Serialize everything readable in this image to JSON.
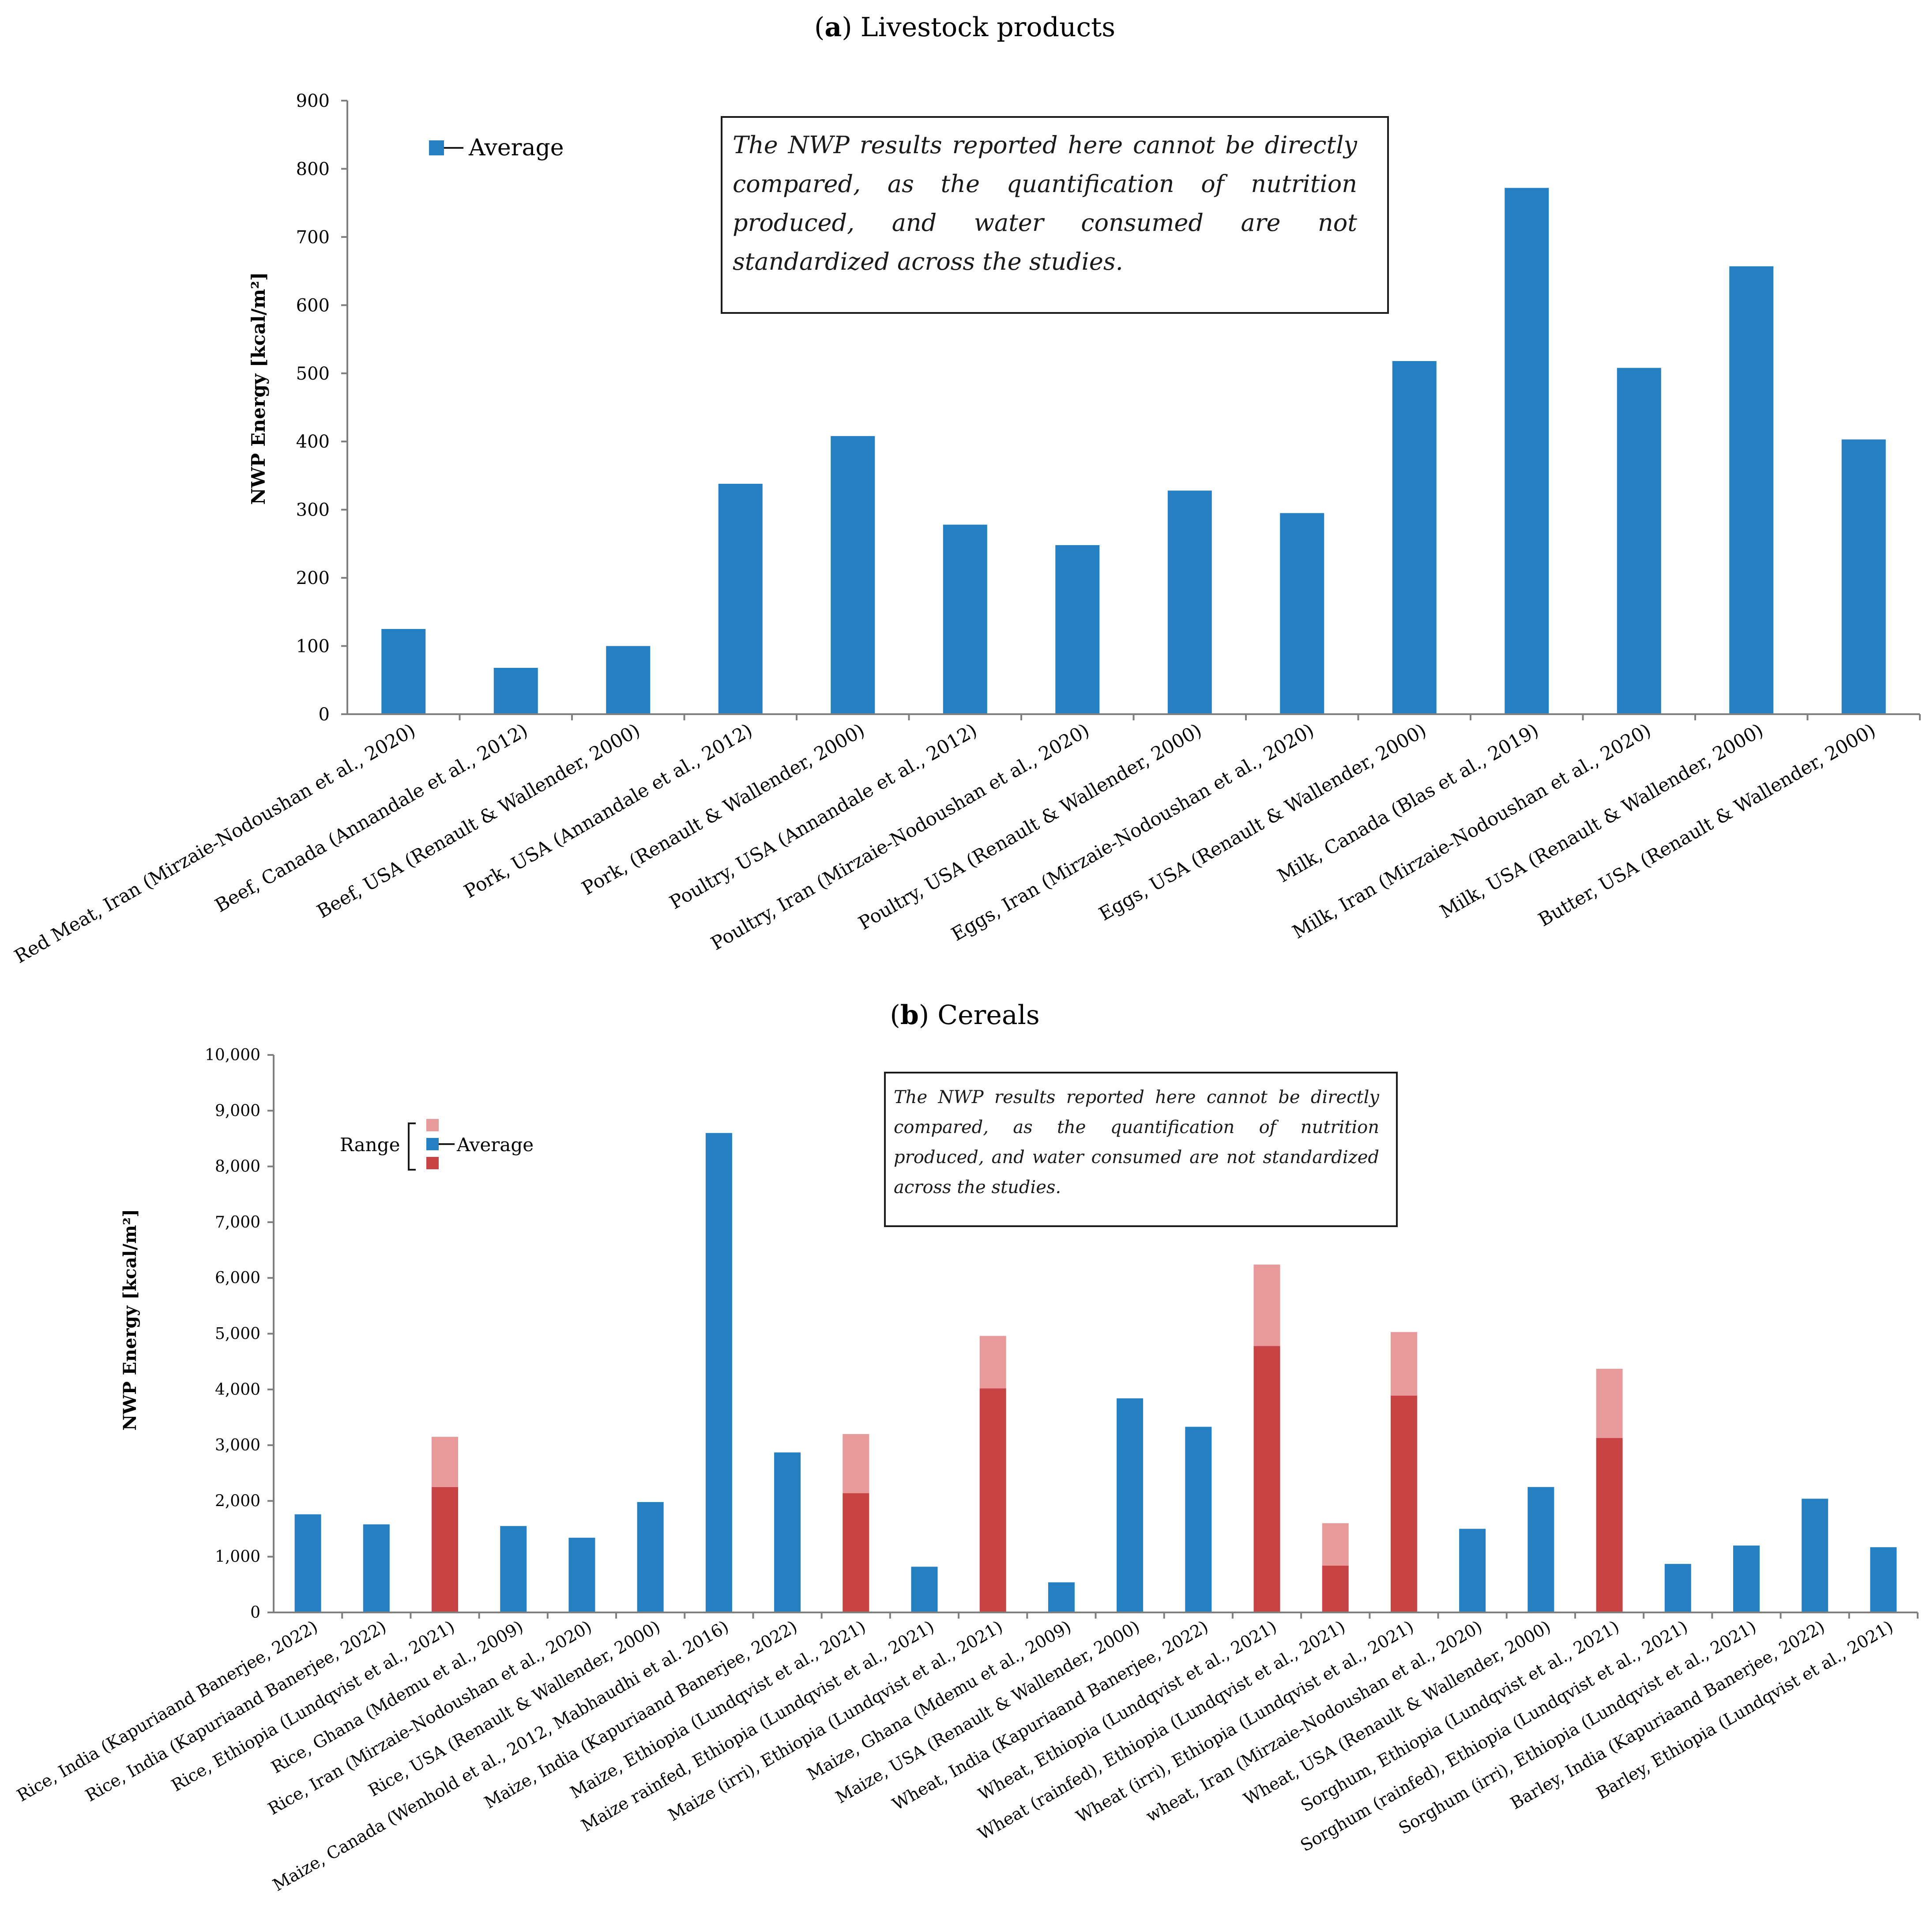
{
  "colors": {
    "average": "#2480C2",
    "range_low": "#C84444",
    "range_high": "#E89A9A",
    "axis": "#7f7f7f"
  },
  "chart_data": [
    {
      "id": "a",
      "type": "bar",
      "panel_letter": "a",
      "title": "Livestock products",
      "ylabel": "NWP Energy  [kcal/m²]",
      "ylim": [
        0,
        900
      ],
      "yticks": [
        "0",
        "100",
        "200",
        "300",
        "400",
        "500",
        "600",
        "700",
        "800",
        "900"
      ],
      "legend": {
        "average_label": "Average"
      },
      "note": "The NWP results reported here cannot be directly compared, as the quantification of nutrition produced, and water consumed are not standardized across the studies.",
      "categories": [
        "Red Meat, Iran (Mirzaie-Nodoushan et al., 2020)",
        "Beef, Canada (Annandale et al., 2012)",
        "Beef, USA (Renault & Wallender, 2000)",
        "Pork, USA (Annandale et al., 2012)",
        "Pork, (Renault & Wallender, 2000)",
        "Poultry, USA (Annandale et al., 2012)",
        "Poultry, Iran (Mirzaie-Nodoushan et al., 2020)",
        "Poultry, USA (Renault & Wallender, 2000)",
        "Eggs, Iran (Mirzaie-Nodoushan et al., 2020)",
        "Eggs, USA (Renault & Wallender, 2000)",
        "Milk, Canada (Blas et al., 2019)",
        "Milk, Iran (Mirzaie-Nodoushan et al., 2020)",
        "Milk, USA (Renault & Wallender, 2000)",
        "Butter, USA (Renault & Wallender, 2000)"
      ],
      "series": [
        {
          "name": "Average",
          "values": [
            125,
            68,
            100,
            338,
            408,
            278,
            248,
            328,
            295,
            518,
            772,
            508,
            657,
            403
          ]
        }
      ]
    },
    {
      "id": "b",
      "type": "bar",
      "panel_letter": "b",
      "title": "Cereals",
      "ylabel": "NWP Energy [kcal/m²]",
      "ylim": [
        0,
        10000
      ],
      "yticks": [
        "0",
        "1,000",
        "2,000",
        "3,000",
        "4,000",
        "5,000",
        "6,000",
        "7,000",
        "8,000",
        "9,000",
        "10,000"
      ],
      "legend": {
        "range_label": "Range",
        "average_label": "Average"
      },
      "note": "The NWP results reported here cannot be directly compared, as the quantification of nutrition produced, and water consumed are not standardized across the studies.",
      "categories": [
        "Rice, India (Kapuriaand Banerjee, 2022)",
        "Rice, India (Kapuriaand Banerjee, 2022)",
        "Rice, Ethiopia (Lundqvist et al., 2021)",
        "Rice, Ghana (Mdemu et al., 2009)",
        "Rice, Iran (Mirzaie-Nodoushan et al., 2020)",
        "Rice, USA (Renault & Wallender, 2000)",
        "Maize, Canada (Wenhold et al., 2012, Mabhaudhi et al. 2016)",
        "Maize, India (Kapuriaand Banerjee, 2022)",
        "Maize, Ethiopia (Lundqvist et al., 2021)",
        "Maize rainfed, Ethiopia (Lundqvist et al., 2021)",
        "Maize  (irri), Ethiopia (Lundqvist et al., 2021)",
        "Maize, Ghana (Mdemu et al., 2009)",
        "Maize, USA (Renault & Wallender, 2000)",
        "Wheat, India (Kapuriaand Banerjee, 2022)",
        "Wheat, Ethiopia (Lundqvist et al., 2021)",
        "Wheat  (rainfed), Ethiopia (Lundqvist et al., 2021)",
        "Wheat   (irri), Ethiopia (Lundqvist et al., 2021)",
        "wheat, Iran (Mirzaie-Nodoushan et al., 2020)",
        "Wheat, USA (Renault & Wallender, 2000)",
        "Sorghum, Ethiopia (Lundqvist et al., 2021)",
        "Sorghum  (rainfed), Ethiopia (Lundqvist et al., 2021)",
        "Sorghum  (irri), Ethiopia (Lundqvist et al., 2021)",
        "Barley, India (Kapuriaand Banerjee, 2022)",
        "Barley, Ethiopia (Lundqvist et al., 2021)"
      ],
      "bars": [
        {
          "kind": "average",
          "value": 1760
        },
        {
          "kind": "average",
          "value": 1580
        },
        {
          "kind": "range",
          "low": 2250,
          "high": 3150
        },
        {
          "kind": "average",
          "value": 1550
        },
        {
          "kind": "average",
          "value": 1340
        },
        {
          "kind": "average",
          "value": 1980
        },
        {
          "kind": "average",
          "value": 8600
        },
        {
          "kind": "average",
          "value": 2870
        },
        {
          "kind": "range",
          "low": 2140,
          "high": 3200
        },
        {
          "kind": "average",
          "value": 820
        },
        {
          "kind": "range",
          "low": 4020,
          "high": 4960
        },
        {
          "kind": "average",
          "value": 540
        },
        {
          "kind": "average",
          "value": 3840
        },
        {
          "kind": "average",
          "value": 3330
        },
        {
          "kind": "range",
          "low": 4780,
          "high": 6240
        },
        {
          "kind": "range",
          "low": 840,
          "high": 1600
        },
        {
          "kind": "range",
          "low": 3890,
          "high": 5030
        },
        {
          "kind": "average",
          "value": 1500
        },
        {
          "kind": "average",
          "value": 2250
        },
        {
          "kind": "range",
          "low": 3130,
          "high": 4370
        },
        {
          "kind": "average",
          "value": 870
        },
        {
          "kind": "average",
          "value": 1200
        },
        {
          "kind": "average",
          "value": 2040
        },
        {
          "kind": "average",
          "value": 1170
        }
      ]
    }
  ]
}
